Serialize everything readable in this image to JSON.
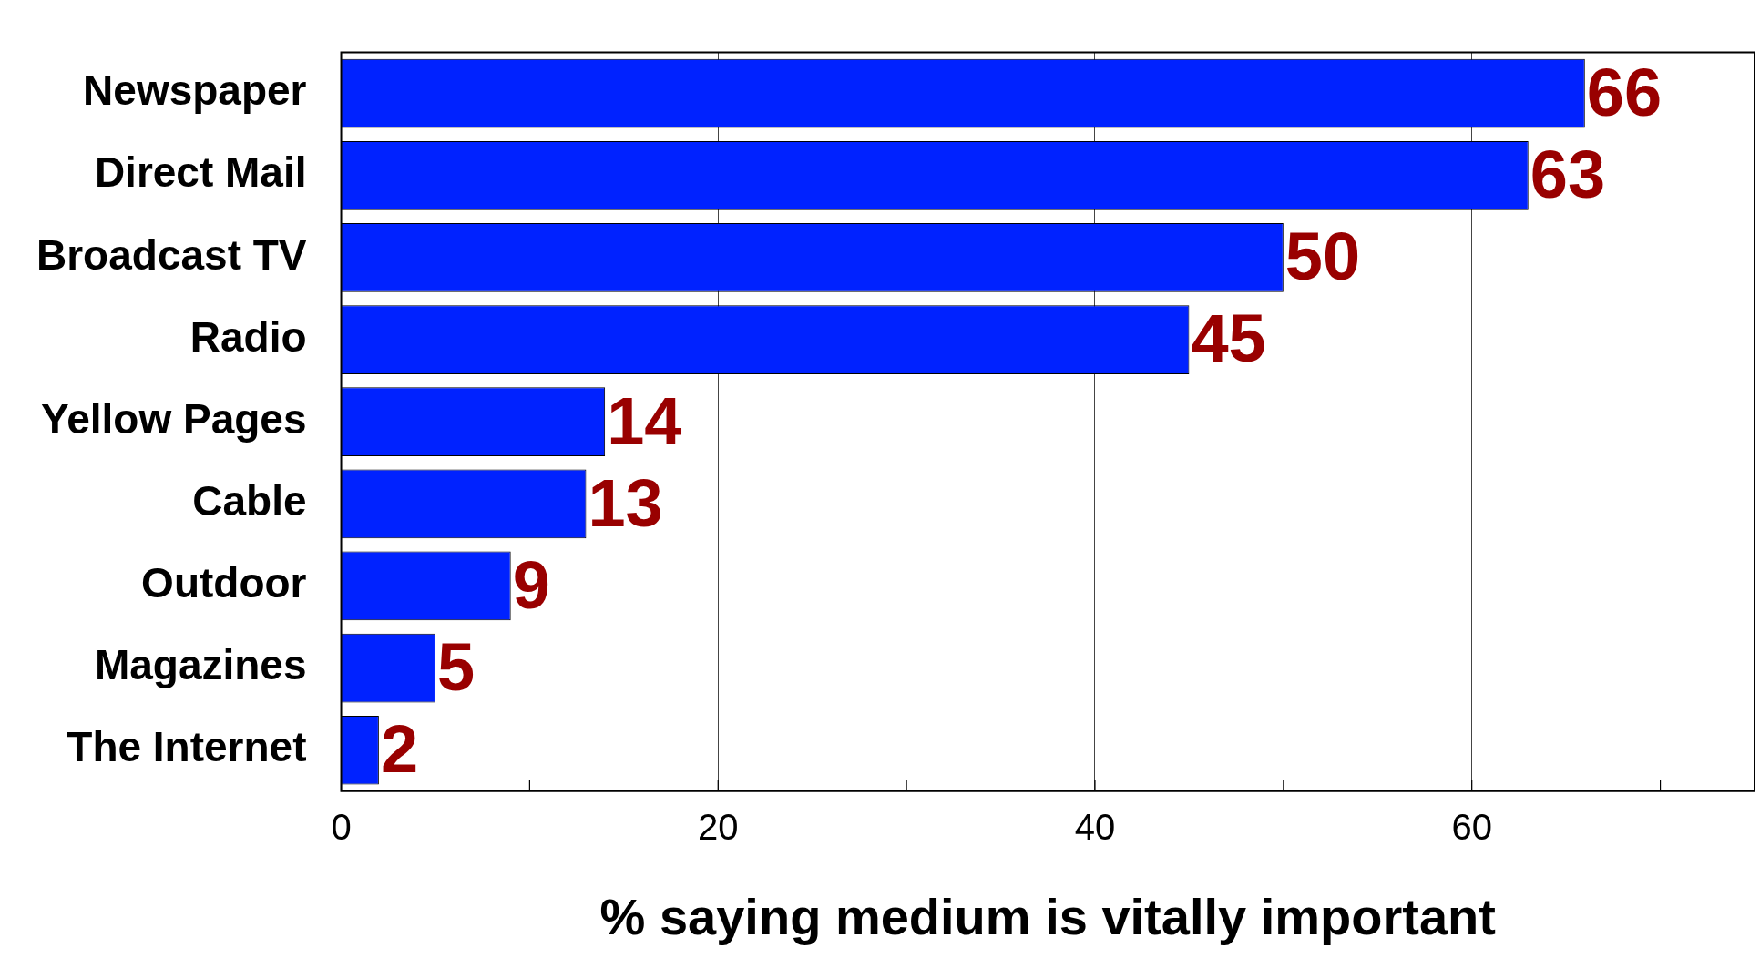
{
  "chart_data": {
    "type": "bar",
    "orientation": "horizontal",
    "xlabel": "% saying medium is vitally important",
    "categories": [
      "Newspaper",
      "Direct Mail",
      "Broadcast TV",
      "Radio",
      "Yellow Pages",
      "Cable",
      "Outdoor",
      "Magazines",
      "The Internet"
    ],
    "values": [
      66,
      63,
      50,
      45,
      14,
      13,
      9,
      5,
      2
    ],
    "color": "#0022ff",
    "data_labels": true,
    "xlim": [
      0,
      75
    ],
    "xticks": [
      0,
      {
        "value": 10,
        "label": null
      },
      20,
      {
        "value": 30,
        "label": null
      },
      40,
      {
        "value": 50,
        "label": null
      },
      60,
      {
        "value": 70,
        "label": null
      }
    ],
    "grid": "x",
    "legend": false
  }
}
